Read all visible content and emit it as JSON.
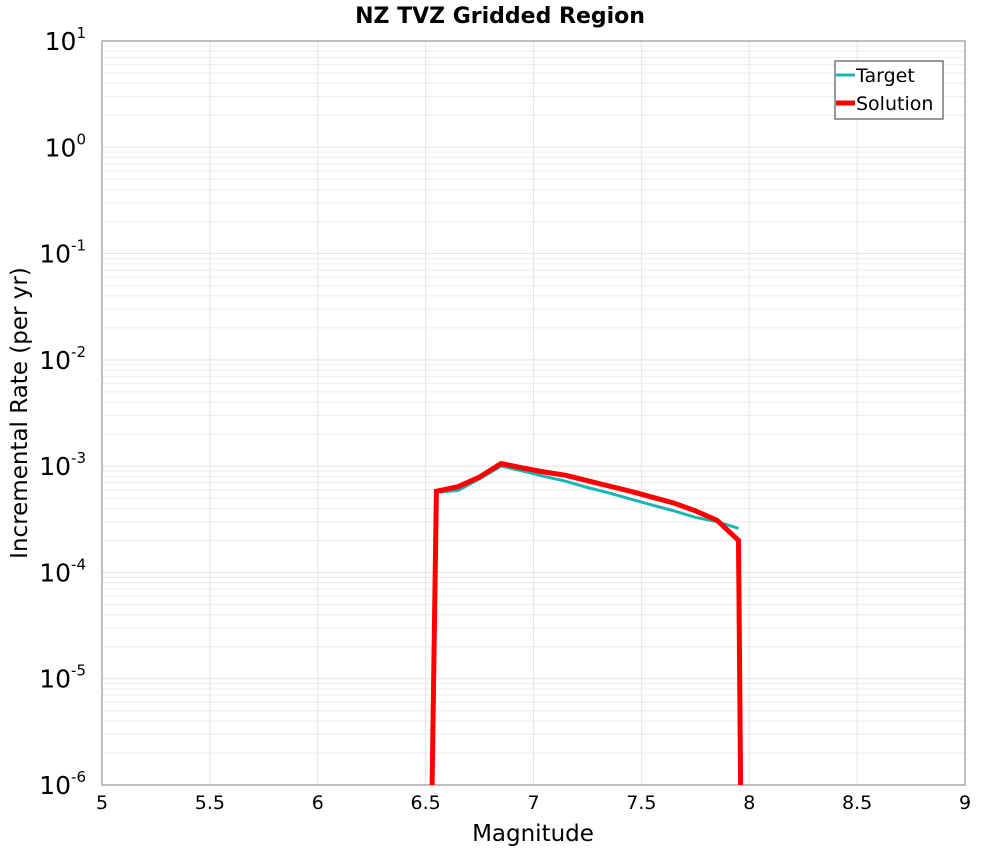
{
  "chart_data": {
    "type": "line",
    "title": "NZ TVZ Gridded Region",
    "xlabel": "Magnitude",
    "ylabel": "Incremental Rate (per yr)",
    "xlim": [
      5,
      9
    ],
    "ylim": [
      1e-06,
      10
    ],
    "yscale": "log",
    "grid": true,
    "legend_position": "upper right",
    "x_ticks": [
      "5",
      "5.5",
      "6",
      "6.5",
      "7",
      "7.5",
      "8",
      "8.5",
      "9"
    ],
    "y_ticks": [
      {
        "base": "10",
        "exp": "1"
      },
      {
        "base": "10",
        "exp": "0"
      },
      {
        "base": "10",
        "exp": "-1"
      },
      {
        "base": "10",
        "exp": "-2"
      },
      {
        "base": "10",
        "exp": "-3"
      },
      {
        "base": "10",
        "exp": "-4"
      },
      {
        "base": "10",
        "exp": "-5"
      },
      {
        "base": "10",
        "exp": "-6"
      }
    ],
    "series": [
      {
        "name": "Target",
        "color": "#1ab5b5",
        "x": [
          6.55,
          6.65,
          6.75,
          6.85,
          6.95,
          7.05,
          7.15,
          7.25,
          7.35,
          7.45,
          7.55,
          7.65,
          7.75,
          7.85,
          7.95
        ],
        "values": [
          0.00057,
          0.00059,
          0.00076,
          0.001,
          0.0009,
          0.0008,
          0.00072,
          0.00063,
          0.00056,
          0.00049,
          0.00043,
          0.00038,
          0.00033,
          0.0003,
          0.00026
        ]
      },
      {
        "name": "Solution",
        "color": "#ff0000",
        "x": [
          6.53,
          6.55,
          6.65,
          6.75,
          6.85,
          6.95,
          7.05,
          7.15,
          7.25,
          7.35,
          7.45,
          7.55,
          7.65,
          7.75,
          7.85,
          7.95,
          7.96
        ],
        "values": [
          1e-06,
          0.00058,
          0.00064,
          0.00079,
          0.00106,
          0.00096,
          0.00088,
          0.00082,
          0.00073,
          0.00065,
          0.00058,
          0.00051,
          0.00045,
          0.00038,
          0.00031,
          0.0002,
          1e-06
        ]
      }
    ]
  }
}
